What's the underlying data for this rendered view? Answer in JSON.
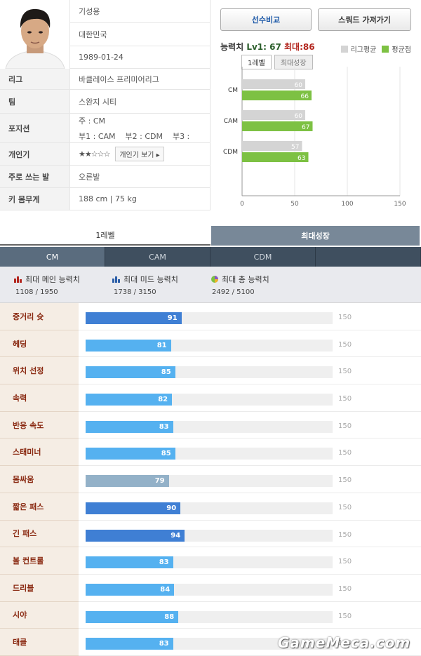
{
  "profile": {
    "name": "기성용",
    "nationality": "대한민국",
    "birthdate": "1989-01-24",
    "rows": [
      {
        "label": "리그",
        "value": "바클레이스 프리미어리그"
      },
      {
        "label": "팀",
        "value": "스완지 시티"
      }
    ],
    "position_label": "포지션",
    "position_main": "주 : CM",
    "position_sub": "부1 : CAM    부2 : CDM    부3 :",
    "popularity_label": "개인기",
    "popularity_stars": "★★☆☆☆",
    "popularity_button": "개인기 보기 ▸",
    "foot_label": "주로 쓰는 발",
    "foot_value": "오른발",
    "hw_label": "키 몸무게",
    "hw_value": "188 cm | 75 kg"
  },
  "panel": {
    "compare_button": "선수비교",
    "squad_button": "스쿼드 가져가기",
    "ability_label": "능력치",
    "lv1_text": "Lv1: 67",
    "max_text": "최대:86",
    "legend_league": "리그평균",
    "legend_avg": "평균점",
    "tab_lv1": "1레벨",
    "tab_max": "최대성장"
  },
  "colors": {
    "league_gray": "#d4d4d4",
    "avg_green": "#7dc143",
    "bar_dark": "#3f7fd4",
    "bar_light": "#55b1f0",
    "bar_gray": "#93b1c8"
  },
  "chart_data": {
    "type": "bar",
    "orientation": "horizontal",
    "categories": [
      "CM",
      "CAM",
      "CDM"
    ],
    "series": [
      {
        "name": "리그평균",
        "values": [
          60,
          60,
          57
        ]
      },
      {
        "name": "평균점",
        "values": [
          66,
          67,
          63
        ]
      }
    ],
    "x_ticks": [
      "0",
      "50",
      "100",
      "150"
    ],
    "xlim": [
      0,
      150
    ],
    "grid": true
  },
  "level_tabs": {
    "lv1": "1레벨",
    "max": "최대성장"
  },
  "position_tabs": [
    "CM",
    "CAM",
    "CDM",
    ""
  ],
  "summary": {
    "main": {
      "title": "최대 메인 능력치",
      "value": "1108 / 1950"
    },
    "mid": {
      "title": "최대 미드 능력치",
      "value": "1738 / 3150"
    },
    "total": {
      "title": "최대 총 능력치",
      "value": "2492 / 5100"
    }
  },
  "stats": [
    {
      "label": "중거리 슛",
      "value": 91,
      "max": "150",
      "style": "dark"
    },
    {
      "label": "헤딩",
      "value": 81,
      "max": "150",
      "style": "light"
    },
    {
      "label": "위치 선정",
      "value": 85,
      "max": "150",
      "style": "light"
    },
    {
      "label": "속력",
      "value": 82,
      "max": "150",
      "style": "light"
    },
    {
      "label": "반응 속도",
      "value": 83,
      "max": "150",
      "style": "light"
    },
    {
      "label": "스태미너",
      "value": 85,
      "max": "150",
      "style": "light"
    },
    {
      "label": "몸싸움",
      "value": 79,
      "max": "150",
      "style": "gray"
    },
    {
      "label": "짧은 패스",
      "value": 90,
      "max": "150",
      "style": "dark"
    },
    {
      "label": "긴 패스",
      "value": 94,
      "max": "150",
      "style": "dark"
    },
    {
      "label": "볼 컨트롤",
      "value": 83,
      "max": "150",
      "style": "light"
    },
    {
      "label": "드리블",
      "value": 84,
      "max": "150",
      "style": "light"
    },
    {
      "label": "시야",
      "value": 88,
      "max": "150",
      "style": "light"
    },
    {
      "label": "태클",
      "value": 83,
      "max": "150",
      "style": "light"
    }
  ],
  "watermark": "GameMeca.com"
}
